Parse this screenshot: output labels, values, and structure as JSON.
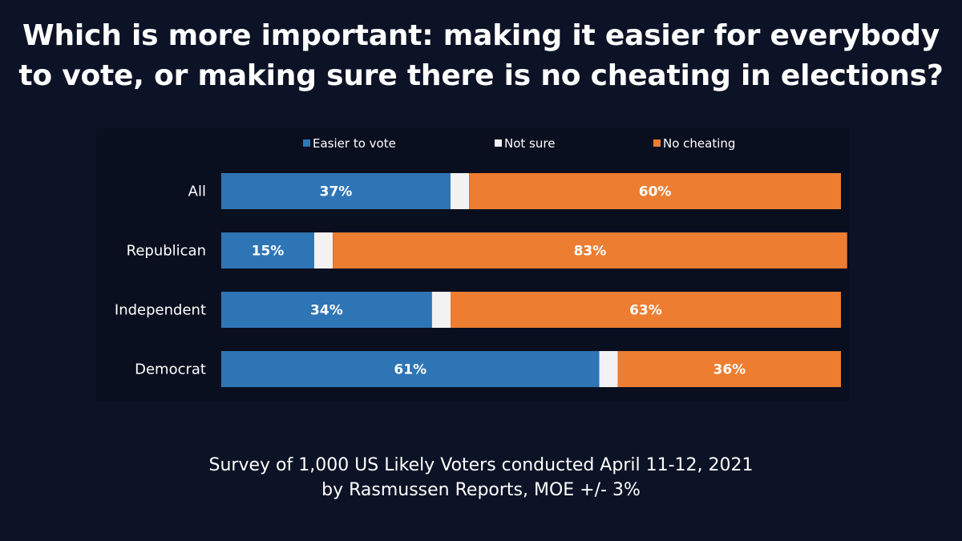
{
  "title_line1": "Which is more important: making it easier for everybody",
  "title_line2": "to vote, or making sure there is no cheating in elections?",
  "footer_line1": "Survey of 1,000 US Likely Voters conducted April 11-12, 2021",
  "footer_line2": "by Rasmussen Reports, MOE +/- 3%",
  "colors": {
    "background": "#0d1326",
    "panel": "#0a0f1f",
    "easier": "#2e75b6",
    "not_sure": "#f2f2f2",
    "no_cheating": "#ed7d31",
    "text": "#ffffff"
  },
  "chart_data": {
    "type": "bar",
    "orientation": "horizontal",
    "stacked": true,
    "title": "",
    "xlabel": "",
    "ylabel": "",
    "xlim": [
      0,
      100
    ],
    "grid": false,
    "legend_position": "top",
    "categories": [
      "All",
      "Republican",
      "Independent",
      "Democrat"
    ],
    "series": [
      {
        "name": "Easier to vote",
        "values": [
          37,
          15,
          34,
          61
        ],
        "labels": [
          "37%",
          "15%",
          "34%",
          "61%"
        ]
      },
      {
        "name": "Not sure",
        "values": [
          3,
          3,
          3,
          3
        ],
        "labels": [
          "",
          "",
          "",
          ""
        ]
      },
      {
        "name": "No cheating",
        "values": [
          60,
          83,
          63,
          36
        ],
        "labels": [
          "60%",
          "83%",
          "63%",
          "36%"
        ]
      }
    ]
  }
}
